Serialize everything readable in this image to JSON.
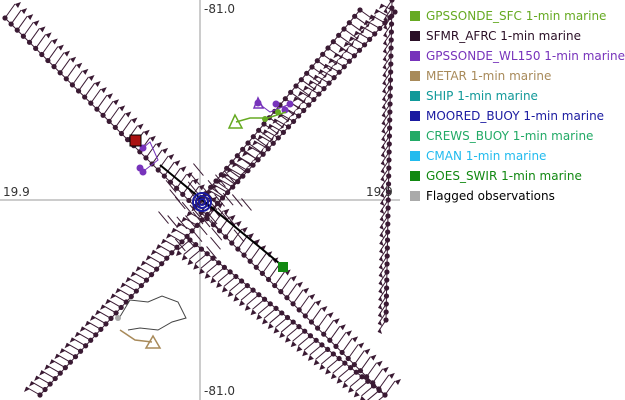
{
  "map": {
    "coordinates": {
      "top": "-81.0",
      "bottom": "-81.0",
      "left": "19.9",
      "right": "19.9"
    },
    "track_color": "#3a1a33"
  },
  "legend": {
    "items": [
      {
        "label": "GPSSONDE_SFC 1-min marine",
        "color": "#66aa22"
      },
      {
        "label": "SFMR_AFRC 1-min marine",
        "color": "#2a0f26"
      },
      {
        "label": "GPSSONDE_WL150 1-min marine",
        "color": "#7733bb"
      },
      {
        "label": "METAR 1-min marine",
        "color": "#a88a5a"
      },
      {
        "label": "SHIP 1-min marine",
        "color": "#119999"
      },
      {
        "label": "MOORED_BUOY 1-min marine",
        "color": "#1a1aa0"
      },
      {
        "label": "CREWS_BUOY 1-min marine",
        "color": "#22aa66"
      },
      {
        "label": "CMAN 1-min marine",
        "color": "#22bbee"
      },
      {
        "label": "GOES_SWIR 1-min marine",
        "color": "#118811"
      },
      {
        "label": "Flagged observations",
        "color": "#aaaaaa"
      }
    ]
  }
}
